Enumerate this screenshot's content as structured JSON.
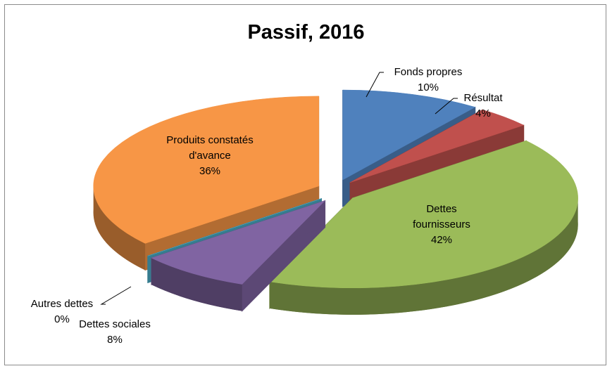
{
  "chart_data": {
    "type": "pie",
    "title": "Passif, 2016",
    "categories": [
      "Fonds propres",
      "Résultat",
      "Dettes fournisseurs",
      "Dettes sociales",
      "Autres dettes",
      "Produits constatés d'avance"
    ],
    "values": [
      10,
      4,
      42,
      8,
      0,
      36
    ],
    "value_labels": [
      "10%",
      "4%",
      "42%",
      "8%",
      "0%",
      "36%"
    ],
    "colors": [
      "#4f81bd",
      "#c0504d",
      "#9bbb59",
      "#8064a2",
      "#4bacc6",
      "#f79646"
    ]
  }
}
